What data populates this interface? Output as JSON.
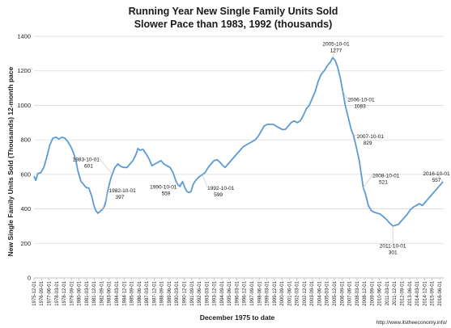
{
  "chart_data": {
    "type": "line",
    "title": "Running Year New Single Family Units Sold",
    "subtitle": "Slower Pace than 1983, 1992 (thousands)",
    "xlabel": "December 1975 to date",
    "ylabel": "New Single Family Units Sold (Thousands) 12-month pace",
    "ylim": [
      0,
      1400
    ],
    "yticks": [
      0,
      200,
      400,
      600,
      800,
      1000,
      1200,
      1400
    ],
    "grid": true,
    "line_color": "#5b9bd5",
    "xticks": [
      "1975-12-01",
      "1976-09-01",
      "1977-06-01",
      "1978-03-01",
      "1978-12-01",
      "1979-09-01",
      "1980-06-01",
      "1981-03-01",
      "1981-12-01",
      "1982-09-01",
      "1983-06-01",
      "1984-03-01",
      "1984-12-01",
      "1985-09-01",
      "1986-06-01",
      "1987-03-01",
      "1987-12-01",
      "1988-09-01",
      "1989-06-01",
      "1990-03-01",
      "1990-12-01",
      "1991-09-01",
      "1992-06-01",
      "1993-03-01",
      "1993-12-01",
      "1994-09-01",
      "1995-06-01",
      "1996-03-01",
      "1996-12-01",
      "1997-09-01",
      "1998-06-01",
      "1999-03-01",
      "1999-12-01",
      "2000-09-01",
      "2001-06-01",
      "2002-03-01",
      "2002-12-01",
      "2003-09-01",
      "2004-06-01",
      "2005-03-01",
      "2005-12-01",
      "2006-09-01",
      "2007-06-01",
      "2008-03-01",
      "2008-12-01",
      "2009-09-01",
      "2010-06-01",
      "2011-03-01",
      "2011-12-01",
      "2012-09-01",
      "2013-06-01",
      "2014-03-01",
      "2014-12-01",
      "2015-09-01",
      "2016-06-01"
    ],
    "series": [
      {
        "x": [
          1975.92,
          1976.1,
          1976.3,
          1976.6,
          1976.9,
          1977.2,
          1977.5,
          1977.8,
          1978.1,
          1978.4,
          1978.7,
          1979.0,
          1979.3,
          1979.6,
          1979.9,
          1980.1,
          1980.3,
          1980.6,
          1980.9,
          1981.1,
          1981.4,
          1981.7,
          1981.9,
          1982.1,
          1982.3,
          1982.5,
          1982.75,
          1983.0,
          1983.3,
          1983.6,
          1983.75,
          1984.0,
          1984.3,
          1984.6,
          1984.9,
          1985.2,
          1985.5,
          1985.8,
          1986.1,
          1986.3,
          1986.5,
          1986.8,
          1987.1,
          1987.4,
          1987.7,
          1988.0,
          1988.3,
          1988.6,
          1988.9,
          1989.2,
          1989.5,
          1989.8,
          1990.1,
          1990.3,
          1990.5,
          1990.75,
          1991.0,
          1991.2,
          1991.4,
          1991.6,
          1991.8,
          1992.0,
          1992.3,
          1992.5,
          1992.75,
          1993.0,
          1993.3,
          1993.6,
          1993.9,
          1994.2,
          1994.5,
          1994.8,
          1995.0,
          1995.3,
          1995.6,
          1995.9,
          1996.2,
          1996.5,
          1996.8,
          1997.1,
          1997.4,
          1997.7,
          1998.0,
          1998.3,
          1998.6,
          1998.9,
          1999.2,
          1999.5,
          1999.8,
          2000.1,
          2000.4,
          2000.7,
          2001.0,
          2001.3,
          2001.6,
          2001.9,
          2002.2,
          2002.5,
          2002.8,
          2003.1,
          2003.4,
          2003.7,
          2004.0,
          2004.3,
          2004.6,
          2004.9,
          2005.2,
          2005.5,
          2005.75,
          2006.0,
          2006.25,
          2006.5,
          2006.75,
          2007.0,
          2007.3,
          2007.6,
          2007.8,
          2008.1,
          2008.4,
          2008.6,
          2008.8,
          2009.0,
          2009.3,
          2009.6,
          2009.9,
          2010.2,
          2010.5,
          2010.8,
          2011.1,
          2011.4,
          2011.75,
          2012.0,
          2012.3,
          2012.6,
          2012.9,
          2013.2,
          2013.5,
          2013.8,
          2014.1,
          2014.4,
          2014.7,
          2015.0,
          2015.3,
          2015.6,
          2015.9,
          2016.2,
          2016.5,
          2016.75
        ],
        "y": [
          590,
          565,
          605,
          610,
          640,
          700,
          770,
          810,
          815,
          805,
          815,
          810,
          790,
          760,
          720,
          680,
          620,
          560,
          540,
          525,
          520,
          470,
          420,
          390,
          375,
          385,
          397,
          420,
          510,
          580,
          601,
          640,
          660,
          645,
          640,
          640,
          660,
          680,
          715,
          750,
          740,
          745,
          720,
          690,
          650,
          660,
          670,
          680,
          660,
          650,
          640,
          610,
          560,
          540,
          530,
          559,
          520,
          500,
          495,
          500,
          540,
          560,
          580,
          590,
          599,
          610,
          640,
          660,
          680,
          685,
          670,
          650,
          640,
          660,
          680,
          700,
          720,
          740,
          760,
          770,
          780,
          790,
          800,
          820,
          850,
          880,
          890,
          890,
          890,
          880,
          870,
          860,
          860,
          880,
          900,
          910,
          900,
          910,
          940,
          980,
          1000,
          1040,
          1080,
          1140,
          1180,
          1200,
          1230,
          1250,
          1277,
          1260,
          1220,
          1160,
          1083,
          1000,
          929,
          860,
          829,
          760,
          680,
          600,
          521,
          490,
          420,
          390,
          380,
          375,
          370,
          355,
          340,
          320,
          301,
          305,
          310,
          330,
          350,
          370,
          395,
          410,
          420,
          430,
          420,
          440,
          460,
          480,
          500,
          520,
          540,
          557
        ]
      }
    ],
    "annotations": [
      {
        "date": "1983-10-01",
        "value": "601"
      },
      {
        "date": "1982-10-01",
        "value": "397"
      },
      {
        "date": "1990-10-01",
        "value": "559"
      },
      {
        "date": "1992-10-01",
        "value": "599"
      },
      {
        "date": "2005-10-01",
        "value": "1277"
      },
      {
        "date": "2006-10-01",
        "value": "1083"
      },
      {
        "date": "2007-10-01",
        "value": "829"
      },
      {
        "date": "2008-10-01",
        "value": "521"
      },
      {
        "date": "2011-10-01",
        "value": "301"
      },
      {
        "date": "2016-10-01",
        "value": "557"
      }
    ]
  },
  "source": "http://www.itstheeconomy.info/"
}
